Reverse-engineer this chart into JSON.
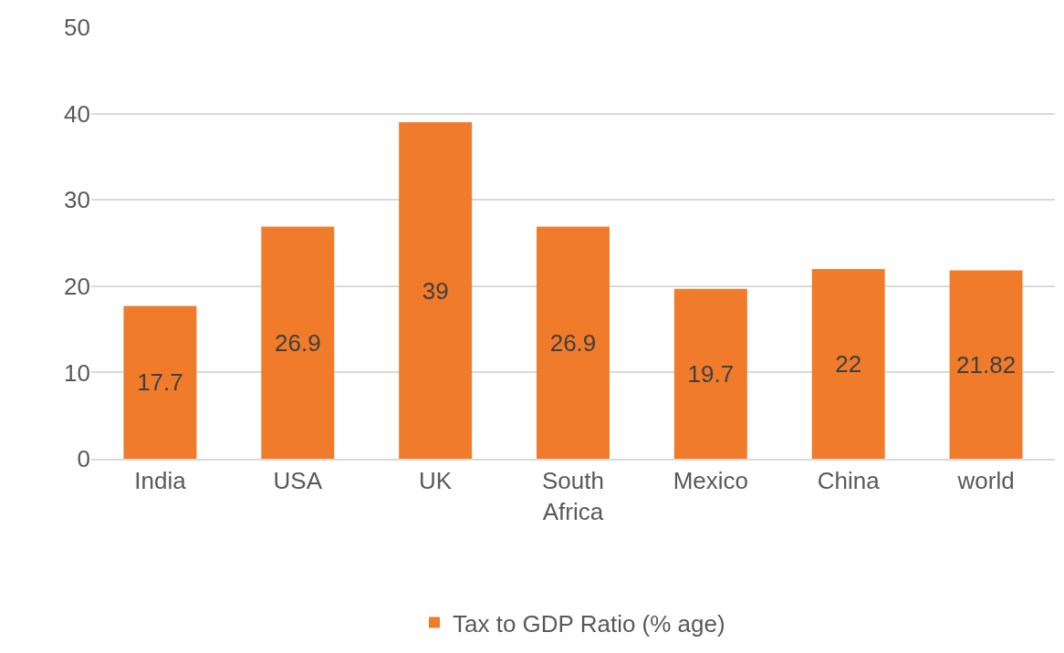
{
  "chart_data": {
    "type": "bar",
    "categories": [
      "India",
      "USA",
      "UK",
      "South Africa",
      "Mexico",
      "China",
      "world"
    ],
    "series": [
      {
        "name": "Tax to GDP Ratio (% age)",
        "color": "#f07b2a",
        "values": [
          17.7,
          26.9,
          39,
          26.9,
          19.7,
          22,
          21.82
        ]
      }
    ],
    "ylim": [
      0,
      50
    ],
    "yticks": [
      0,
      10,
      20,
      30,
      40,
      50
    ],
    "grid": "y",
    "legend": "bottom",
    "data_labels": true
  }
}
